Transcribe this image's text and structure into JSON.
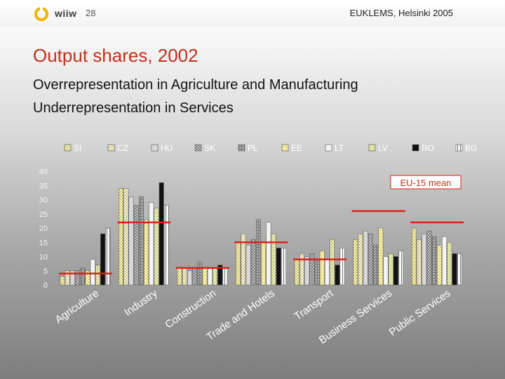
{
  "header": {
    "logo_text": "wiiw",
    "page_number": "28",
    "event": "EUKLEMS, Helsinki 2005"
  },
  "slide": {
    "title": "Output shares, 2002",
    "subtitle_1": "Overrepresentation in Agriculture and Manufacturing",
    "subtitle_2": "Underrepresentation in Services"
  },
  "chart_data": {
    "type": "bar",
    "categories": [
      "Agriculture",
      "Industry",
      "Construction",
      "Trade and Hotels",
      "Transport",
      "Business Services",
      "Public Services"
    ],
    "series": [
      {
        "name": "SI",
        "values": [
          3,
          34,
          6,
          15,
          9,
          16,
          20
        ]
      },
      {
        "name": "CZ",
        "values": [
          5,
          34,
          6,
          18,
          11,
          18,
          16
        ]
      },
      {
        "name": "HU",
        "values": [
          5,
          31,
          5,
          14,
          10,
          19,
          18
        ]
      },
      {
        "name": "SK",
        "values": [
          5,
          28,
          6,
          16,
          11,
          18,
          19
        ]
      },
      {
        "name": "PL",
        "values": [
          6,
          31,
          8,
          23,
          9,
          14,
          17
        ]
      },
      {
        "name": "EE",
        "values": [
          5,
          23,
          6,
          15,
          12,
          20,
          14
        ]
      },
      {
        "name": "LT",
        "values": [
          9,
          29,
          6,
          22,
          9,
          10,
          17
        ]
      },
      {
        "name": "LV",
        "values": [
          7,
          27,
          6,
          18,
          16,
          11,
          15
        ]
      },
      {
        "name": "RO",
        "values": [
          18,
          36,
          7,
          13,
          7,
          10,
          11
        ]
      },
      {
        "name": "BG",
        "values": [
          20,
          28,
          6,
          13,
          13,
          12,
          11
        ]
      }
    ],
    "eu15_mean": [
      4,
      22,
      6,
      15,
      9,
      26,
      22
    ],
    "annotation": "EU-15 mean",
    "ylim": [
      0,
      40
    ],
    "yticks": [
      0,
      5,
      10,
      15,
      20,
      25,
      30,
      35,
      40
    ],
    "legend_position": "top",
    "colors": {
      "mean_line": "#e0201a",
      "annotation_text": "#c0311c",
      "SI": "#f2ec9a",
      "CZ": "#f4eec0",
      "HU": "#d8d8d8",
      "SK": "#c8c8c8",
      "PL": "#a8a8a8",
      "EE": "#fff6a0",
      "LT": "#f4f4f4",
      "LV": "#eeeeaa",
      "RO": "#111111",
      "BG": "#fafafa"
    }
  }
}
